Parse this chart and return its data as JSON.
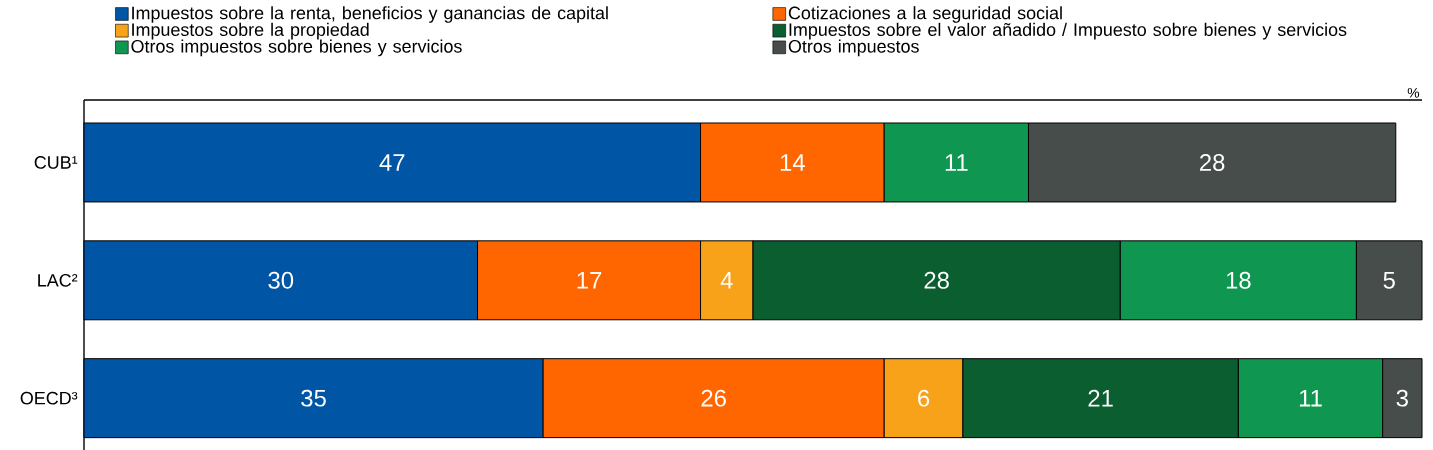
{
  "chart_data": {
    "type": "bar",
    "orientation": "horizontal",
    "stacked": true,
    "data_labels": true,
    "legend": "top",
    "xlabel": "%",
    "xlim": [
      0,
      102
    ],
    "tick_labels": "y",
    "categories": [
      "CUB¹",
      "LAC²",
      "OECD³"
    ],
    "series": [
      {
        "name": "Impuestos sobre la renta, beneficios y ganancias de capital",
        "color": "#0055a5",
        "values": [
          47,
          30,
          35
        ]
      },
      {
        "name": "Cotizaciones a la seguridad social",
        "color": "#ff6600",
        "values": [
          14,
          17,
          26
        ]
      },
      {
        "name": "Impuestos sobre la propiedad",
        "color": "#f8a21a",
        "values": [
          null,
          4,
          6
        ]
      },
      {
        "name": "Impuestos sobre el valor añadido / Impuesto sobre bienes y servicios",
        "color": "#0a5e30",
        "values": [
          null,
          28,
          21
        ]
      },
      {
        "name": "Otros impuestos sobre bienes y servicios",
        "color": "#0f9650",
        "values": [
          11,
          18,
          11
        ]
      },
      {
        "name": "Otros impuestos",
        "color": "#474d4b",
        "values": [
          28,
          5,
          3
        ]
      }
    ]
  }
}
